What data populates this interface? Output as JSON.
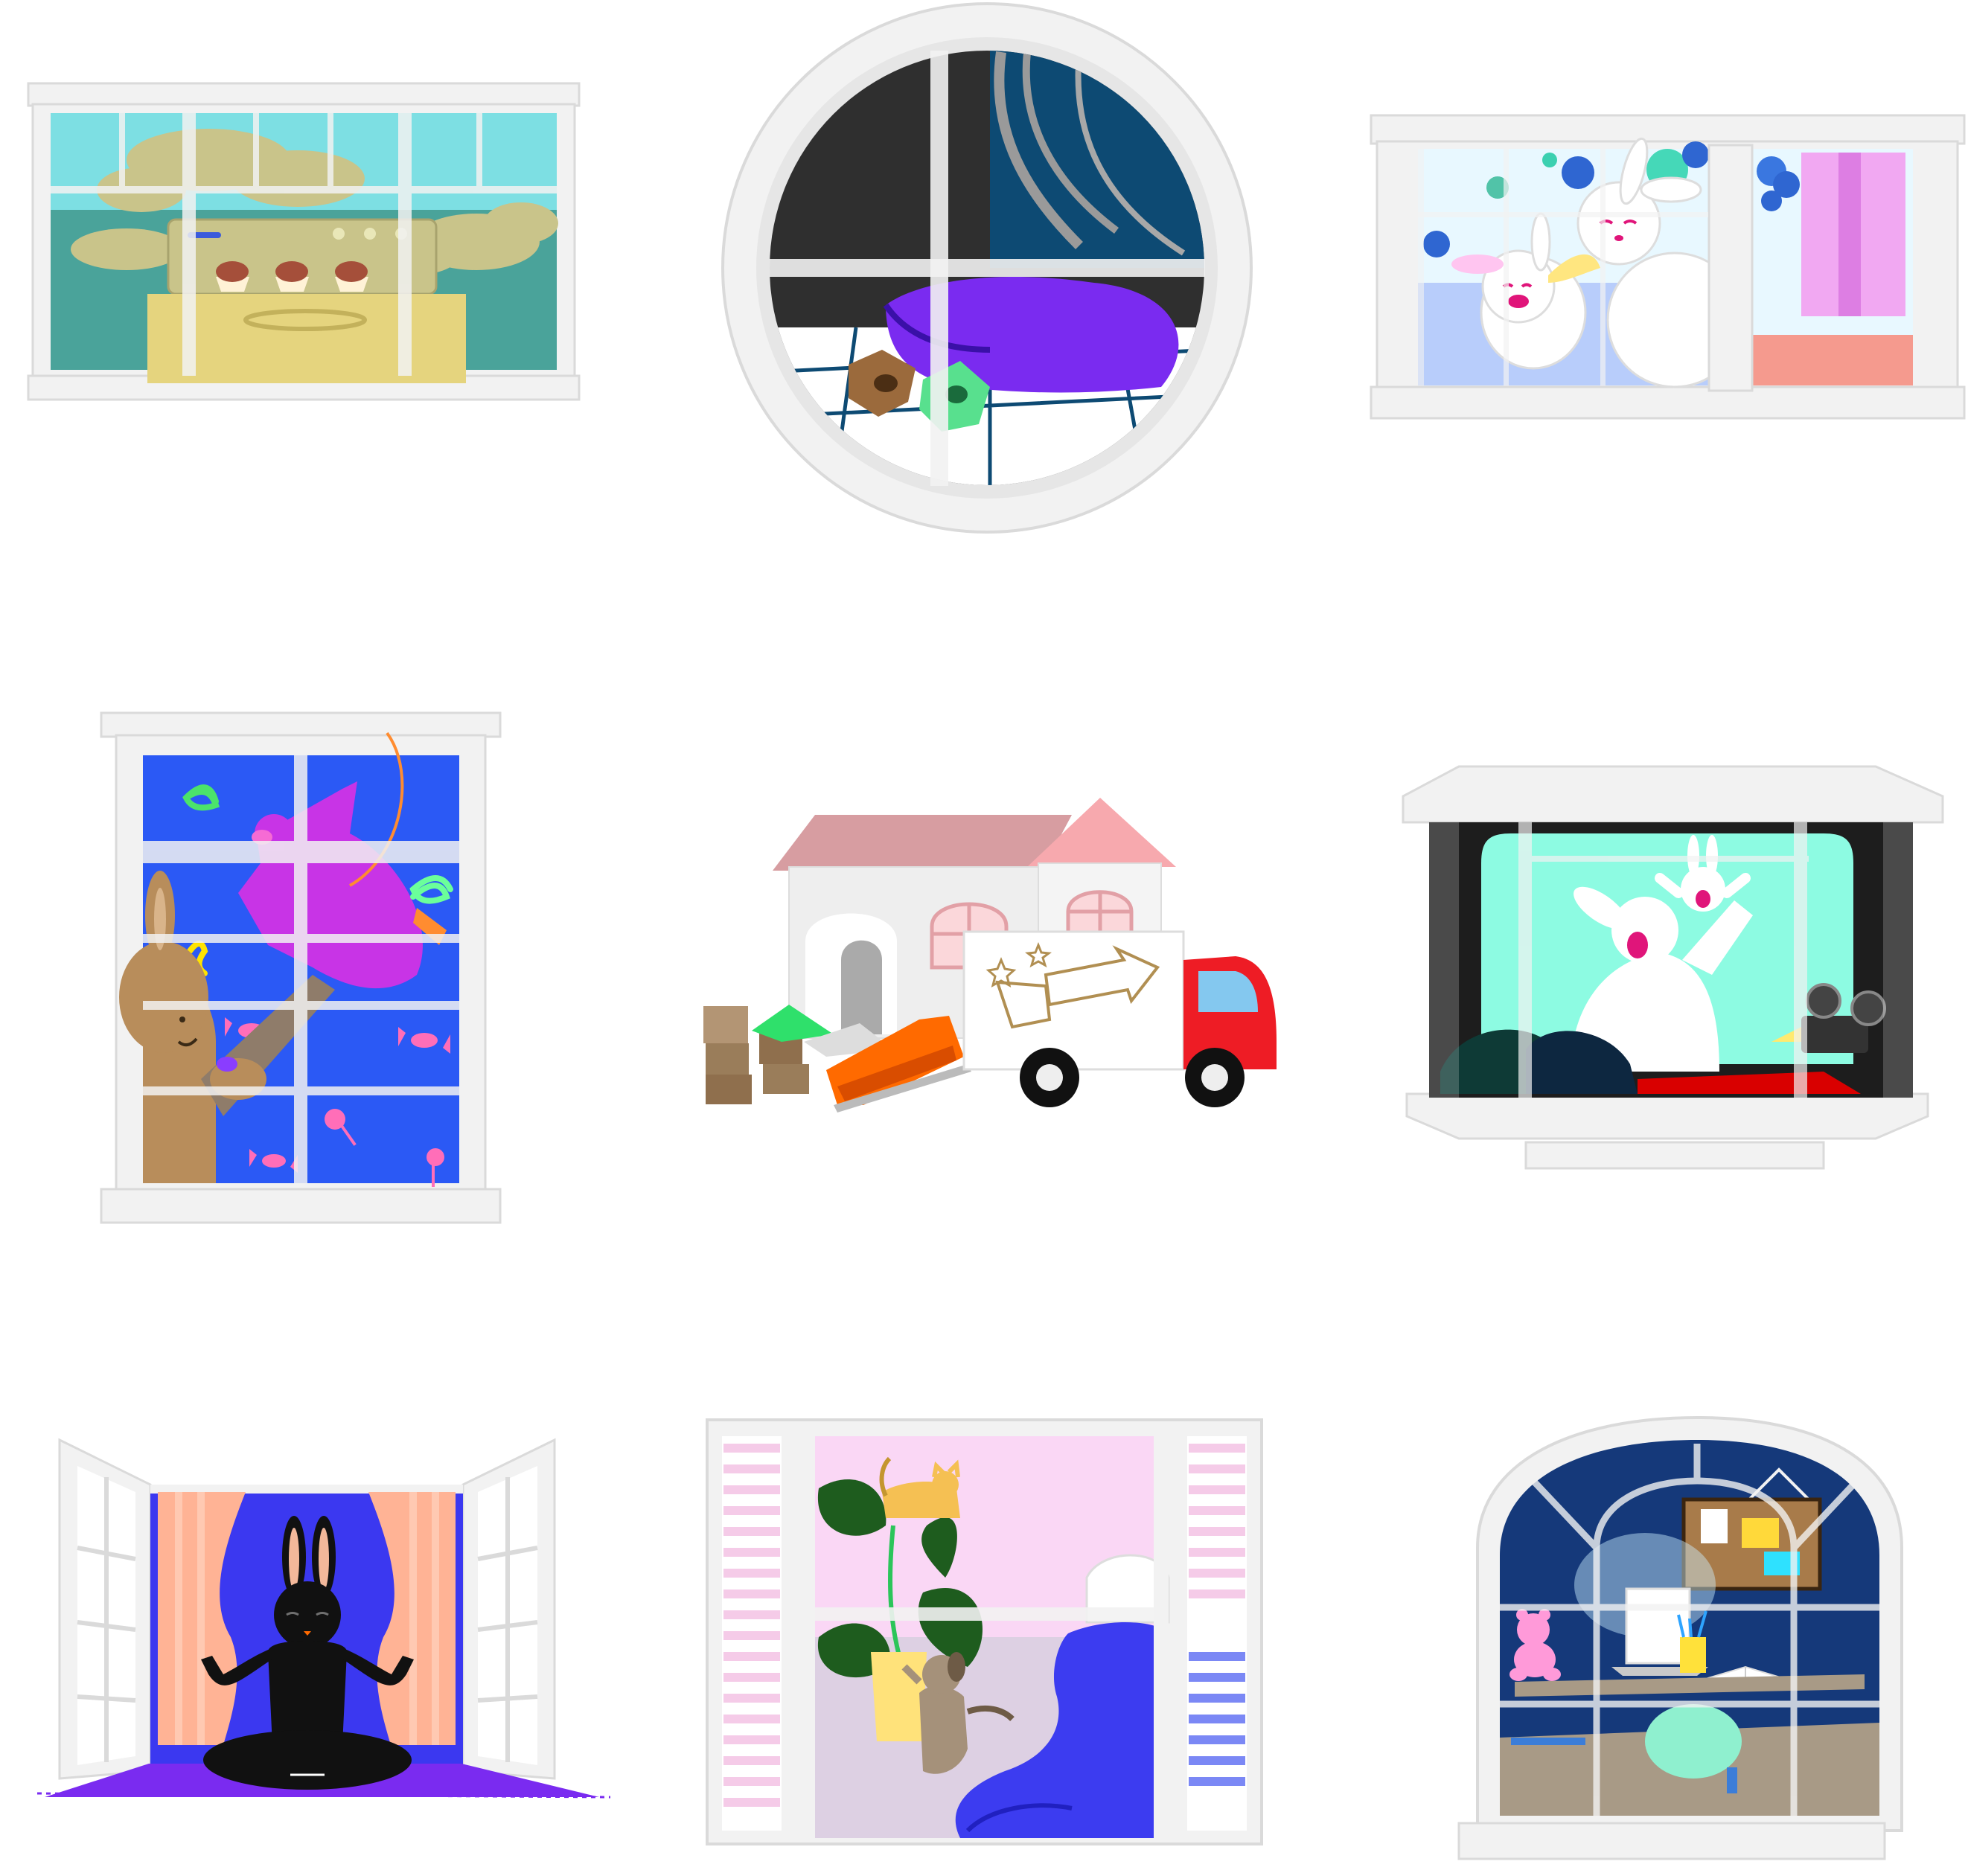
{
  "scenes": [
    {
      "id": "kitchen-oven-window",
      "row": 1,
      "col": 1,
      "frame": "rectangular-sash",
      "theme": "oven with cupcakes and steam clouds"
    },
    {
      "id": "round-bedroom-window",
      "row": 1,
      "col": 2,
      "frame": "circular",
      "theme": "sleeping in purple blanket with plush toys"
    },
    {
      "id": "bunny-bath-window",
      "row": 1,
      "col": 3,
      "frame": "wide-sash",
      "theme": "two white bunnies in bubble bath"
    },
    {
      "id": "party-pinata-window",
      "row": 2,
      "col": 1,
      "frame": "tall-grid",
      "theme": "brown bunny hitting pink pinata with candy"
    },
    {
      "id": "moving-truck-house",
      "row": 2,
      "col": 2,
      "frame": "none",
      "theme": "house, moving truck, boxes and sofa"
    },
    {
      "id": "bay-window-cinema",
      "row": 2,
      "col": 3,
      "frame": "bay",
      "theme": "bunnies on movie screen with projector"
    },
    {
      "id": "open-window-yoga",
      "row": 3,
      "col": 1,
      "frame": "open-casement",
      "theme": "black bunny meditating on purple mat"
    },
    {
      "id": "shutter-window-bedroom",
      "row": 3,
      "col": 2,
      "frame": "shuttered",
      "theme": "cat and dog playing with plant beside bed"
    },
    {
      "id": "arched-window-study",
      "row": 3,
      "col": 3,
      "frame": "arched",
      "theme": "desk with laptop, bear toy and cork board"
    }
  ],
  "colors": {
    "frame": "#f2f2f2",
    "frame_edge": "#dadada",
    "glass": "#ffffff",
    "sky_teal": "#7ddfe3",
    "sea_teal": "#4aa39a",
    "steam": "#c9c48a",
    "night_navy": "#0d4a73",
    "blanket_purple": "#7a2bf0",
    "bath_blue": "#b8cdfb",
    "party_blue": "#2b59f5",
    "pinata_pink": "#c834e6",
    "bunny_tan": "#b88d5b",
    "roof_pink": "#d79da1",
    "truck_red": "#ee1c25",
    "sofa_orange": "#ff6a00",
    "screen_mint": "#8dfbe2",
    "yoga_blue": "#3b38f0",
    "curtain_peach": "#ffb395",
    "room_pink": "#fad7f5",
    "study_navy": "#15397a",
    "lamp_glow": "#cdefff"
  },
  "icons": [
    "cupcake-icon",
    "cloud-icon",
    "bunny-icon",
    "pinata-icon",
    "candy-icon",
    "truck-icon",
    "house-icon",
    "box-icon",
    "sofa-icon",
    "projector-icon",
    "cat-icon",
    "dog-icon",
    "plant-icon",
    "laptop-icon",
    "teddy-bear-icon"
  ]
}
